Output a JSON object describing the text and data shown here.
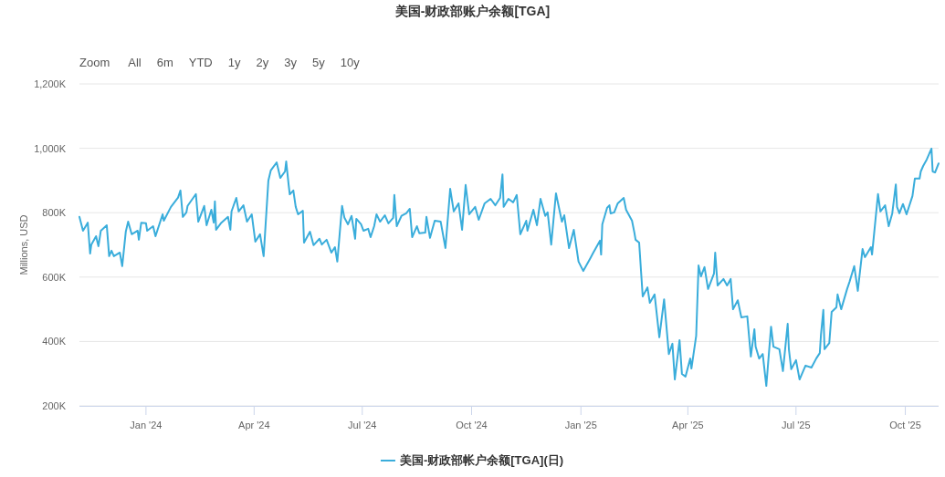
{
  "chart_data": {
    "type": "line",
    "title": "美国-财政部账户余额[TGA]",
    "ylabel": "Millions, USD",
    "annotations": [
      "Zoom",
      "All",
      "6m",
      "YTD",
      "1y",
      "2y",
      "3y",
      "5y",
      "10y"
    ],
    "xlim": [
      "2023-11-06",
      "2025-10-29"
    ],
    "xticks": [
      {
        "value": "2024-01-01",
        "label": "Jan '24"
      },
      {
        "value": "2024-04-01",
        "label": "Apr '24"
      },
      {
        "value": "2024-07-01",
        "label": "Jul '24"
      },
      {
        "value": "2024-10-01",
        "label": "Oct '24"
      },
      {
        "value": "2025-01-01",
        "label": "Jan '25"
      },
      {
        "value": "2025-04-01",
        "label": "Apr '25"
      },
      {
        "value": "2025-07-01",
        "label": "Jul '25"
      },
      {
        "value": "2025-10-01",
        "label": "Oct '25"
      }
    ],
    "ylim": [
      200000,
      1200000
    ],
    "yticks": [
      {
        "value": 200000,
        "label": "200K"
      },
      {
        "value": 400000,
        "label": "400K"
      },
      {
        "value": 600000,
        "label": "600K"
      },
      {
        "value": 800000,
        "label": "800K"
      },
      {
        "value": 1000000,
        "label": "1,000K"
      },
      {
        "value": 1200000,
        "label": "1,200K"
      }
    ],
    "grid": "y",
    "legend": "bottom",
    "marker": "none",
    "line_style": "solid",
    "x": [
      "2023-11-06",
      "2023-11-09",
      "2023-11-13",
      "2023-11-15",
      "2023-11-16",
      "2023-11-20",
      "2023-11-22",
      "2023-11-24",
      "2023-11-29",
      "2023-12-01",
      "2023-12-03",
      "2023-12-05",
      "2023-12-10",
      "2023-12-12",
      "2023-12-15",
      "2023-12-17",
      "2023-12-20",
      "2023-12-25",
      "2023-12-26",
      "2023-12-28",
      "2024-01-01",
      "2024-01-02",
      "2024-01-07",
      "2024-01-09",
      "2024-01-15",
      "2024-01-16",
      "2024-01-22",
      "2024-01-28",
      "2024-01-30",
      "2024-02-01",
      "2024-02-04",
      "2024-02-05",
      "2024-02-12",
      "2024-02-14",
      "2024-02-19",
      "2024-02-21",
      "2024-02-25",
      "2024-02-27",
      "2024-02-28",
      "2024-02-29",
      "2024-03-04",
      "2024-03-10",
      "2024-03-12",
      "2024-03-13",
      "2024-03-17",
      "2024-03-19",
      "2024-03-23",
      "2024-03-26",
      "2024-03-30",
      "2024-04-02",
      "2024-04-06",
      "2024-04-09",
      "2024-04-13",
      "2024-04-15",
      "2024-04-20",
      "2024-04-23",
      "2024-04-27",
      "2024-04-28",
      "2024-04-30",
      "2024-05-01",
      "2024-05-04",
      "2024-05-06",
      "2024-05-08",
      "2024-05-12",
      "2024-05-13",
      "2024-05-18",
      "2024-05-21",
      "2024-05-26",
      "2024-05-28",
      "2024-06-01",
      "2024-06-05",
      "2024-06-08",
      "2024-06-10",
      "2024-06-14",
      "2024-06-16",
      "2024-06-19",
      "2024-06-22",
      "2024-06-25",
      "2024-06-26",
      "2024-06-30",
      "2024-07-02",
      "2024-07-06",
      "2024-07-08",
      "2024-07-11",
      "2024-07-13",
      "2024-07-16",
      "2024-07-20",
      "2024-07-23",
      "2024-07-27",
      "2024-07-28",
      "2024-07-30",
      "2024-08-03",
      "2024-08-07",
      "2024-08-10",
      "2024-08-12",
      "2024-08-16",
      "2024-08-18",
      "2024-08-23",
      "2024-08-24",
      "2024-08-27",
      "2024-08-31",
      "2024-09-05",
      "2024-09-09",
      "2024-09-13",
      "2024-09-16",
      "2024-09-20",
      "2024-09-23",
      "2024-09-26",
      "2024-09-29",
      "2024-10-04",
      "2024-10-07",
      "2024-10-12",
      "2024-10-17",
      "2024-10-21",
      "2024-10-25",
      "2024-10-27",
      "2024-10-28",
      "2024-11-01",
      "2024-11-05",
      "2024-11-08",
      "2024-11-11",
      "2024-11-16",
      "2024-11-17",
      "2024-11-22",
      "2024-11-25",
      "2024-11-28",
      "2024-12-02",
      "2024-12-04",
      "2024-12-07",
      "2024-12-11",
      "2024-12-16",
      "2024-12-18",
      "2024-12-22",
      "2024-12-26",
      "2024-12-30",
      "2025-01-03",
      "2025-01-09",
      "2025-01-11",
      "2025-01-17",
      "2025-01-18",
      "2025-01-19",
      "2025-01-23",
      "2025-01-25",
      "2025-01-26",
      "2025-01-29",
      "2025-02-01",
      "2025-02-06",
      "2025-02-08",
      "2025-02-13",
      "2025-02-15",
      "2025-02-16",
      "2025-02-19",
      "2025-02-22",
      "2025-02-26",
      "2025-02-28",
      "2025-03-04",
      "2025-03-08",
      "2025-03-12",
      "2025-03-16",
      "2025-03-19",
      "2025-03-21",
      "2025-03-25",
      "2025-03-27",
      "2025-03-30",
      "2025-04-03",
      "2025-04-04",
      "2025-04-08",
      "2025-04-10",
      "2025-04-12",
      "2025-04-15",
      "2025-04-18",
      "2025-04-23",
      "2025-04-24",
      "2025-04-26",
      "2025-05-01",
      "2025-05-04",
      "2025-05-07",
      "2025-05-09",
      "2025-05-13",
      "2025-05-16",
      "2025-05-21",
      "2025-05-24",
      "2025-05-27",
      "2025-05-28",
      "2025-05-31",
      "2025-06-03",
      "2025-06-06",
      "2025-06-10",
      "2025-06-12",
      "2025-06-17",
      "2025-06-20",
      "2025-06-24",
      "2025-06-25",
      "2025-06-27",
      "2025-07-01",
      "2025-07-04",
      "2025-07-09",
      "2025-07-14",
      "2025-07-18",
      "2025-07-21",
      "2025-07-22",
      "2025-07-24",
      "2025-07-25",
      "2025-07-29",
      "2025-07-31",
      "2025-08-04",
      "2025-08-05",
      "2025-08-08",
      "2025-08-13",
      "2025-08-15",
      "2025-08-19",
      "2025-08-22",
      "2025-08-26",
      "2025-08-28",
      "2025-09-02",
      "2025-09-03",
      "2025-09-08",
      "2025-09-10",
      "2025-09-14",
      "2025-09-17",
      "2025-09-20",
      "2025-09-23",
      "2025-09-24",
      "2025-09-26",
      "2025-09-29",
      "2025-10-02",
      "2025-10-07",
      "2025-10-09",
      "2025-10-13",
      "2025-10-14",
      "2025-10-16",
      "2025-10-19",
      "2025-10-23",
      "2025-10-24",
      "2025-10-26",
      "2025-10-29"
    ],
    "series": [
      {
        "name": "美国-财政部帐户余额[TGA](日)",
        "color": "#3aaddb",
        "values": [
          787000,
          744000,
          769000,
          673000,
          701000,
          727000,
          696000,
          744000,
          761000,
          665000,
          682000,
          665000,
          676000,
          634000,
          741000,
          772000,
          733000,
          744000,
          716000,
          769000,
          767000,
          744000,
          758000,
          727000,
          795000,
          775000,
          818000,
          847000,
          869000,
          787000,
          801000,
          821000,
          858000,
          772000,
          821000,
          761000,
          809000,
          769000,
          835000,
          747000,
          767000,
          787000,
          747000,
          804000,
          846000,
          804000,
          823000,
          772000,
          795000,
          710000,
          733000,
          665000,
          900000,
          931000,
          956000,
          908000,
          928000,
          959000,
          888000,
          857000,
          869000,
          818000,
          795000,
          806000,
          707000,
          741000,
          699000,
          719000,
          701000,
          716000,
          676000,
          693000,
          648000,
          821000,
          784000,
          764000,
          790000,
          719000,
          781000,
          764000,
          744000,
          750000,
          724000,
          758000,
          795000,
          772000,
          792000,
          767000,
          784000,
          855000,
          758000,
          790000,
          798000,
          812000,
          724000,
          758000,
          736000,
          738000,
          787000,
          722000,
          775000,
          772000,
          690000,
          874000,
          804000,
          829000,
          747000,
          886000,
          795000,
          818000,
          778000,
          829000,
          843000,
          823000,
          846000,
          919000,
          818000,
          843000,
          832000,
          855000,
          733000,
          775000,
          744000,
          809000,
          761000,
          843000,
          790000,
          801000,
          701000,
          860000,
          772000,
          792000,
          690000,
          747000,
          648000,
          619000,
          659000,
          673000,
          713000,
          670000,
          764000,
          815000,
          823000,
          798000,
          801000,
          829000,
          846000,
          809000,
          775000,
          738000,
          716000,
          707000,
          540000,
          568000,
          520000,
          546000,
          413000,
          531000,
          361000,
          393000,
          282000,
          404000,
          299000,
          291000,
          347000,
          316000,
          418000,
          636000,
          602000,
          631000,
          563000,
          611000,
          676000,
          574000,
          594000,
          574000,
          594000,
          500000,
          528000,
          475000,
          478000,
          353000,
          438000,
          384000,
          347000,
          361000,
          262000,
          446000,
          384000,
          376000,
          308000,
          455000,
          376000,
          314000,
          342000,
          282000,
          325000,
          319000,
          347000,
          364000,
          421000,
          498000,
          376000,
          395000,
          492000,
          506000,
          546000,
          500000,
          563000,
          585000,
          634000,
          557000,
          687000,
          662000,
          693000,
          670000,
          858000,
          804000,
          823000,
          758000,
          798000,
          888000,
          818000,
          798000,
          827000,
          795000,
          852000,
          906000,
          906000,
          928000,
          945000,
          965000,
          999000,
          928000,
          925000,
          953000
        ]
      }
    ]
  }
}
